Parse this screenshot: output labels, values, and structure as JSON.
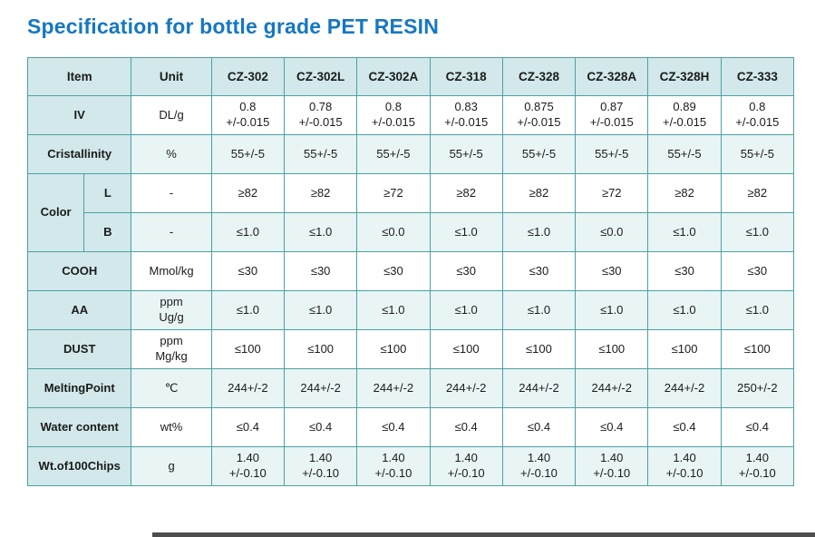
{
  "page": {
    "title": "Specification for bottle grade PET RESIN"
  },
  "colors": {
    "title_blue": "#1677c2",
    "border_teal": "#4aa3a3",
    "header_bg": "#d2e8ea",
    "shade_bg": "#e9f4f5"
  },
  "table": {
    "headers": [
      "Item",
      "Unit",
      "CZ-302",
      "CZ-302L",
      "CZ-302A",
      "CZ-318",
      "CZ-328",
      "CZ-328A",
      "CZ-328H",
      "CZ-333"
    ],
    "rows": [
      {
        "kind": "normal",
        "item": "IV",
        "unit": "DL/g",
        "values": [
          "0.8\n+/-0.015",
          "0.78\n+/-0.015",
          "0.8\n+/-0.015",
          "0.83\n+/-0.015",
          "0.875\n+/-0.015",
          "0.87\n+/-0.015",
          "0.89\n+/-0.015",
          "0.8\n+/-0.015"
        ]
      },
      {
        "kind": "normal",
        "item": "Cristallinity",
        "unit": "%",
        "values": [
          "55+/-5",
          "55+/-5",
          "55+/-5",
          "55+/-5",
          "55+/-5",
          "55+/-5",
          "55+/-5",
          "55+/-5"
        ]
      },
      {
        "kind": "color-first",
        "item": "Color",
        "sub": "L",
        "unit": "-",
        "values": [
          "≥82",
          "≥82",
          "≥72",
          "≥82",
          "≥82",
          "≥72",
          "≥82",
          "≥82"
        ]
      },
      {
        "kind": "color-second",
        "sub": "B",
        "unit": "-",
        "values": [
          "≤1.0",
          "≤1.0",
          "≤0.0",
          "≤1.0",
          "≤1.0",
          "≤0.0",
          "≤1.0",
          "≤1.0"
        ]
      },
      {
        "kind": "normal",
        "item": "COOH",
        "unit": "Mmol/kg",
        "values": [
          "≤30",
          "≤30",
          "≤30",
          "≤30",
          "≤30",
          "≤30",
          "≤30",
          "≤30"
        ]
      },
      {
        "kind": "normal",
        "item": "AA",
        "unit": "ppm\nUg/g",
        "values": [
          "≤1.0",
          "≤1.0",
          "≤1.0",
          "≤1.0",
          "≤1.0",
          "≤1.0",
          "≤1.0",
          "≤1.0"
        ]
      },
      {
        "kind": "normal",
        "item": "DUST",
        "unit": "ppm\nMg/kg",
        "values": [
          "≤100",
          "≤100",
          "≤100",
          "≤100",
          "≤100",
          "≤100",
          "≤100",
          "≤100"
        ]
      },
      {
        "kind": "normal",
        "item": "MeltingPoint",
        "unit": "℃",
        "values": [
          "244+/-2",
          "244+/-2",
          "244+/-2",
          "244+/-2",
          "244+/-2",
          "244+/-2",
          "244+/-2",
          "250+/-2"
        ]
      },
      {
        "kind": "normal",
        "item": "Water content",
        "unit": "wt%",
        "values": [
          "≤0.4",
          "≤0.4",
          "≤0.4",
          "≤0.4",
          "≤0.4",
          "≤0.4",
          "≤0.4",
          "≤0.4"
        ]
      },
      {
        "kind": "normal",
        "item": "Wt.of100Chips",
        "unit": "g",
        "values": [
          "1.40\n+/-0.10",
          "1.40\n+/-0.10",
          "1.40\n+/-0.10",
          "1.40\n+/-0.10",
          "1.40\n+/-0.10",
          "1.40\n+/-0.10",
          "1.40\n+/-0.10",
          "1.40\n+/-0.10"
        ]
      }
    ]
  }
}
